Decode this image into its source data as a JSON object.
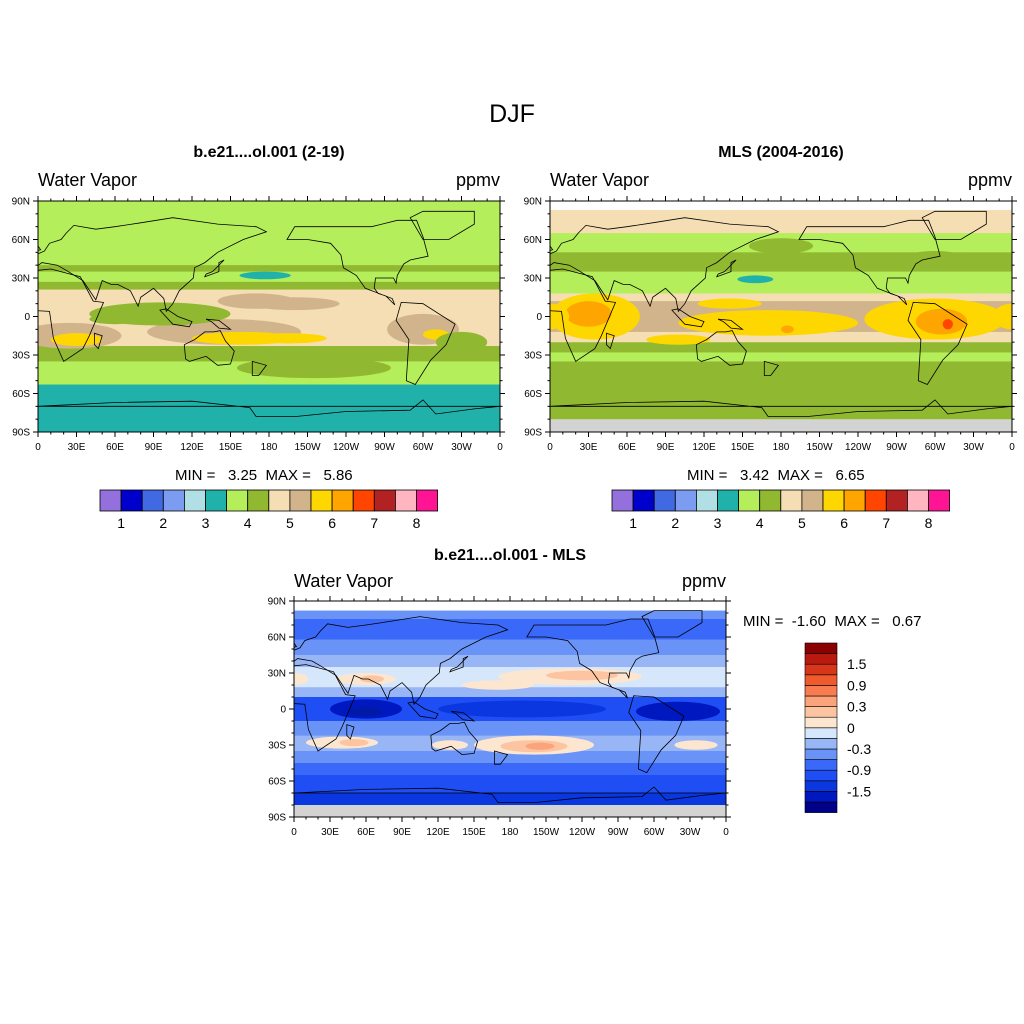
{
  "figure": {
    "title": "DJF"
  },
  "panels": [
    {
      "title": "b.e21....ol.001 (2-19)",
      "left_label": "Water Vapor",
      "right_label": "ppmv",
      "min_label": "MIN =",
      "min_value": "3.25",
      "max_label": "MAX =",
      "max_value": "5.86"
    },
    {
      "title": "MLS (2004-2016)",
      "left_label": "Water Vapor",
      "right_label": "ppmv",
      "min_label": "MIN =",
      "min_value": "3.42",
      "max_label": "MAX =",
      "max_value": "6.65"
    },
    {
      "title": "b.e21....ol.001 - MLS",
      "left_label": "Water Vapor",
      "right_label": "ppmv",
      "min_label": "MIN =",
      "min_value": "-1.60",
      "max_label": "MAX =",
      "max_value": "0.67"
    }
  ],
  "axes": {
    "lat_ticks": [
      "90N",
      "60N",
      "30N",
      "0",
      "30S",
      "60S",
      "90S"
    ],
    "lon_ticks": [
      "0",
      "30E",
      "60E",
      "90E",
      "120E",
      "150E",
      "180",
      "150W",
      "120W",
      "90W",
      "60W",
      "30W",
      "0"
    ]
  },
  "colorbar_abs": {
    "colors": [
      "#9370db",
      "#0000cd",
      "#4169e1",
      "#7b9cf0",
      "#b0e0e6",
      "#20b2aa",
      "#b4ee5a",
      "#90b830",
      "#f5deb3",
      "#d2b48c",
      "#ffd700",
      "#ffa500",
      "#ff4500",
      "#b22222",
      "#ffb6c1",
      "#ff1493"
    ],
    "labels": [
      "1",
      "2",
      "3",
      "4",
      "5",
      "6",
      "7",
      "8"
    ]
  },
  "colorbar_diff": {
    "colors": [
      "#00008b",
      "#0018c0",
      "#0a37e0",
      "#1f4ef5",
      "#3a68f8",
      "#6a93f8",
      "#98b6f6",
      "#d6e6fb",
      "#fde6d0",
      "#fcc4a0",
      "#fba37a",
      "#f87c50",
      "#f05a2c",
      "#d8361a",
      "#b81a10",
      "#8b0000"
    ],
    "labels": [
      "1.5",
      "0.9",
      "0.3",
      "0",
      "-0.3",
      "-0.9",
      "-1.5"
    ]
  }
}
